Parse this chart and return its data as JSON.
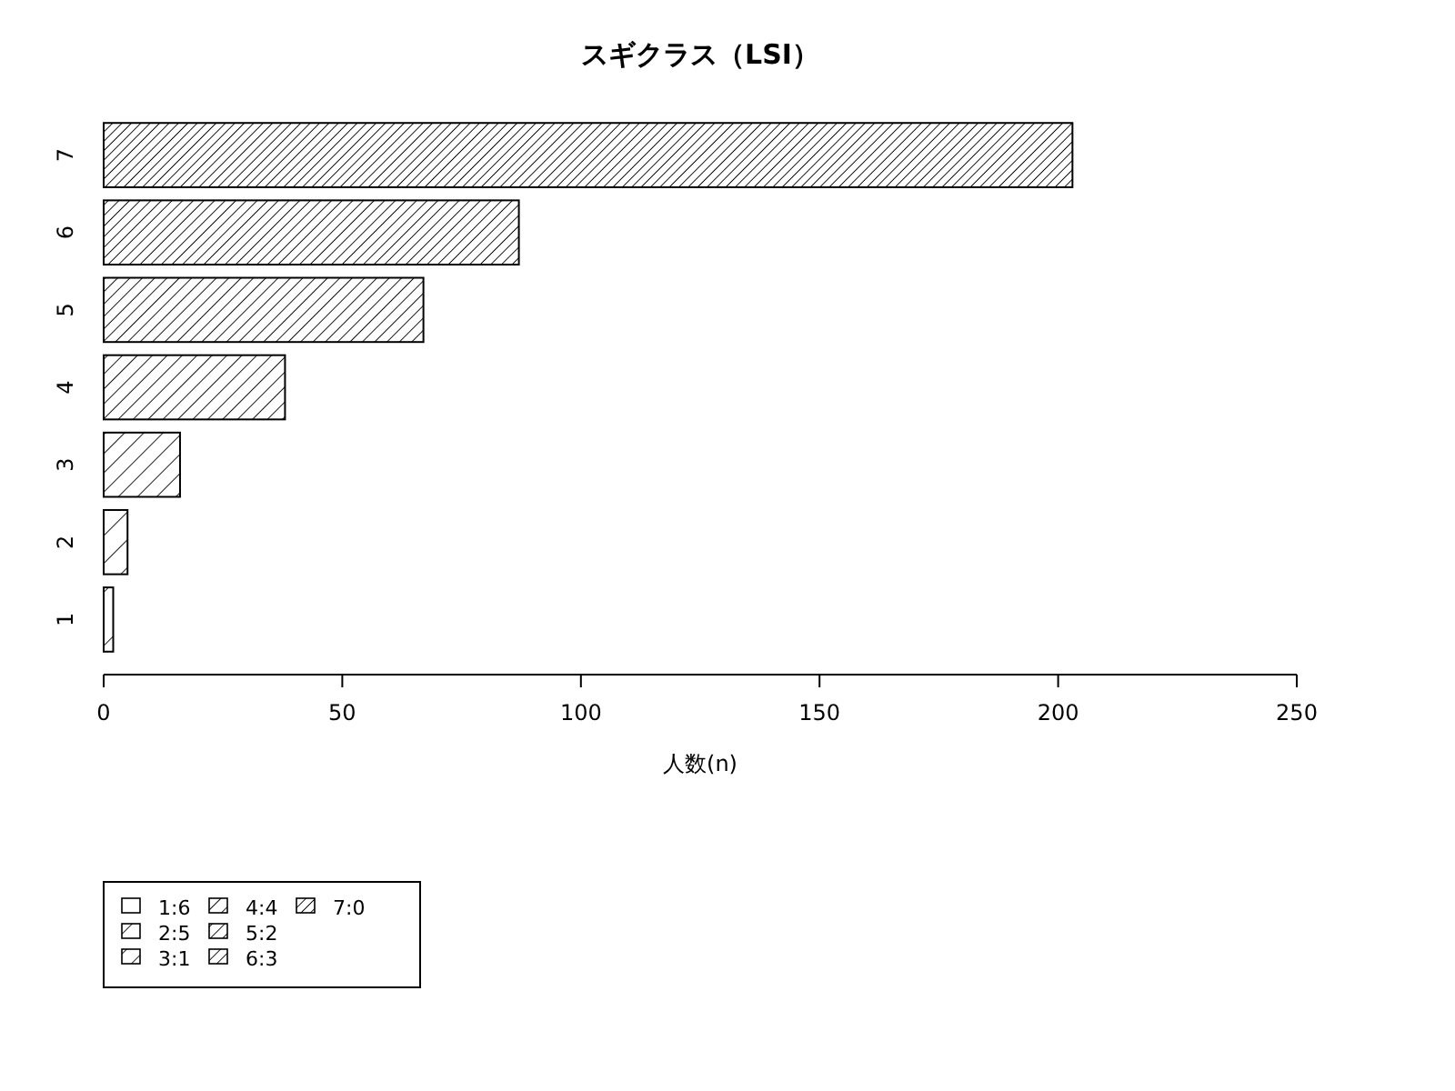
{
  "chart_data": {
    "type": "bar",
    "orientation": "horizontal",
    "title": "スギクラス（LSI）",
    "xlabel": "人数(n)",
    "categories": [
      "7",
      "6",
      "5",
      "4",
      "3",
      "2",
      "1"
    ],
    "series": [
      {
        "name": "1:6",
        "color": "#000000",
        "values": [
          null,
          null,
          null,
          null,
          null,
          null,
          2
        ]
      },
      {
        "name": "2:5",
        "color": "#000000",
        "values": [
          null,
          null,
          null,
          null,
          null,
          5,
          null
        ]
      },
      {
        "name": "3:1",
        "color": "#000000",
        "values": [
          null,
          null,
          null,
          null,
          16,
          null,
          null
        ]
      },
      {
        "name": "4:4",
        "color": "#000000",
        "values": [
          null,
          null,
          null,
          38,
          null,
          null,
          null
        ]
      },
      {
        "name": "5:2",
        "color": "#000000",
        "values": [
          null,
          null,
          67,
          null,
          null,
          null,
          null
        ]
      },
      {
        "name": "6:3",
        "color": "#000000",
        "values": [
          null,
          87,
          null,
          null,
          null,
          null,
          null
        ]
      },
      {
        "name": "7:0",
        "color": "#000000",
        "values": [
          203,
          null,
          null,
          null,
          null,
          null,
          null
        ]
      }
    ],
    "xlim": [
      0,
      250
    ],
    "xticks": [
      0,
      50,
      100,
      150,
      200,
      250
    ],
    "grid": false,
    "legend": "bottom left"
  }
}
